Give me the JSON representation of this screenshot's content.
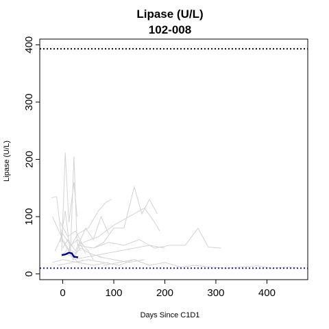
{
  "chart_data": {
    "type": "line",
    "title": "Lipase (U/L)",
    "subtitle": "102-008",
    "xlabel": "Days Since C1D1",
    "ylabel": "Lipase (U/L)",
    "xlim": [
      -45,
      480
    ],
    "ylim": [
      -10,
      410
    ],
    "x_ticks": [
      0,
      100,
      200,
      300,
      400
    ],
    "y_ticks": [
      0,
      100,
      200,
      300,
      400
    ],
    "grid": false,
    "colors": {
      "background": "#d3d3d3",
      "highlight": "#00008b",
      "reference": "#000000",
      "reference_low": "#1a1aa0",
      "frame": "#000000"
    },
    "reference_lines": [
      {
        "y": 393,
        "style": "dotted",
        "color": "#000000"
      },
      {
        "y": 10,
        "style": "dotted",
        "color": "#1a1aa0"
      }
    ],
    "highlight_series": {
      "color": "#00008b",
      "x": [
        -2,
        5,
        12,
        18,
        22,
        30
      ],
      "y": [
        33,
        34,
        37,
        36,
        30,
        29
      ]
    },
    "background_series": [
      {
        "x": [
          -22,
          -12,
          -2,
          8,
          18,
          28
        ],
        "y": [
          133,
          135,
          60,
          45,
          40,
          35
        ]
      },
      {
        "x": [
          -2,
          5,
          12,
          22,
          28
        ],
        "y": [
          40,
          212,
          90,
          160,
          100
        ]
      },
      {
        "x": [
          -5,
          5,
          15,
          22,
          28,
          35
        ],
        "y": [
          55,
          110,
          35,
          205,
          55,
          40
        ]
      },
      {
        "x": [
          -20,
          -10,
          0,
          10,
          20,
          30,
          40
        ],
        "y": [
          100,
          80,
          60,
          45,
          30,
          20,
          25
        ]
      },
      {
        "x": [
          -2,
          10,
          20,
          35,
          50,
          60
        ],
        "y": [
          30,
          45,
          25,
          55,
          40,
          25
        ]
      },
      {
        "x": [
          0,
          10,
          25,
          45,
          60,
          75,
          90
        ],
        "y": [
          45,
          60,
          40,
          80,
          60,
          100,
          70
        ]
      },
      {
        "x": [
          10,
          30,
          50,
          70,
          85,
          95
        ],
        "y": [
          40,
          70,
          80,
          110,
          125,
          130
        ]
      },
      {
        "x": [
          30,
          60,
          80,
          100,
          120,
          140,
          155,
          170,
          185
        ],
        "y": [
          50,
          45,
          55,
          80,
          80,
          152,
          105,
          130,
          105
        ]
      },
      {
        "x": [
          40,
          70,
          100,
          130,
          160,
          180,
          190
        ],
        "y": [
          55,
          65,
          85,
          100,
          115,
          90,
          75
        ]
      },
      {
        "x": [
          60,
          90,
          120,
          150,
          180,
          210,
          240,
          265,
          285,
          310
        ],
        "y": [
          45,
          55,
          50,
          60,
          45,
          50,
          50,
          80,
          47,
          45
        ]
      },
      {
        "x": [
          20,
          50,
          80,
          110,
          140,
          170,
          200
        ],
        "y": [
          25,
          30,
          35,
          40,
          45,
          50,
          45
        ]
      },
      {
        "x": [
          -20,
          0,
          30,
          60,
          90
        ],
        "y": [
          20,
          25,
          20,
          15,
          20
        ]
      },
      {
        "x": [
          -10,
          20,
          50,
          80,
          110,
          140,
          170
        ],
        "y": [
          15,
          20,
          25,
          20,
          15,
          25,
          15
        ]
      },
      {
        "x": [
          80,
          110,
          140,
          170,
          200,
          230,
          260,
          290,
          320,
          350,
          380,
          410,
          440,
          460
        ],
        "y": [
          15,
          20,
          25,
          15,
          20,
          12,
          15,
          12,
          10,
          12,
          14,
          10,
          12,
          11
        ]
      },
      {
        "x": [
          -15,
          0,
          15,
          30,
          45
        ],
        "y": [
          40,
          70,
          50,
          60,
          35
        ]
      },
      {
        "x": [
          -5,
          10,
          25,
          40
        ],
        "y": [
          90,
          65,
          75,
          50
        ]
      },
      {
        "x": [
          5,
          20,
          35,
          55,
          75
        ],
        "y": [
          35,
          30,
          45,
          35,
          30
        ]
      },
      {
        "x": [
          70,
          100,
          130,
          160
        ],
        "y": [
          30,
          25,
          20,
          25
        ]
      }
    ]
  }
}
